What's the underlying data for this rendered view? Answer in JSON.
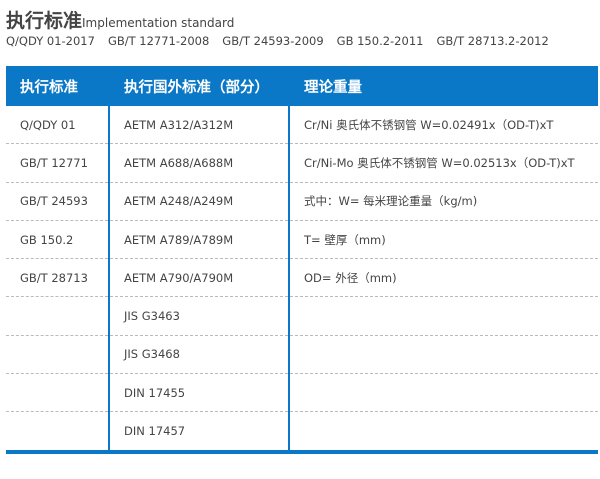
{
  "title": {
    "cn": "执行标准",
    "en": "Implementation standard"
  },
  "standards": [
    "Q/QDY 01-2017",
    "GB/T 12771-2008",
    "GB/T 24593-2009",
    "GB 150.2-2011",
    "GB/T 28713.2-2012"
  ],
  "table": {
    "headers": [
      "执行标准",
      "执行国外标准（部分）",
      "理论重量"
    ],
    "rows": [
      [
        "Q/QDY 01",
        "AETM A312/A312M",
        "Cr/Ni 奥氏体不锈钢管 W=0.02491x（OD-T)xT"
      ],
      [
        "GB/T 12771",
        "AETM A688/A688M",
        "Cr/Ni-Mo 奥氏体不锈钢管 W=0.02513x（OD-T)xT"
      ],
      [
        "GB/T 24593",
        "AETM A248/A249M",
        "式中：W= 每米理论重量（kg/m)"
      ],
      [
        "GB 150.2",
        "AETM A789/A789M",
        "T= 壁厚（mm)"
      ],
      [
        "GB/T 28713",
        "AETM A790/A790M",
        "OD= 外径（mm)"
      ],
      [
        "",
        "JIS G3463",
        ""
      ],
      [
        "",
        "JIS G3468",
        ""
      ],
      [
        "",
        "DIN 17455",
        ""
      ],
      [
        "",
        "DIN 17457",
        ""
      ]
    ]
  },
  "colors": {
    "accent": "#0a78c6"
  }
}
